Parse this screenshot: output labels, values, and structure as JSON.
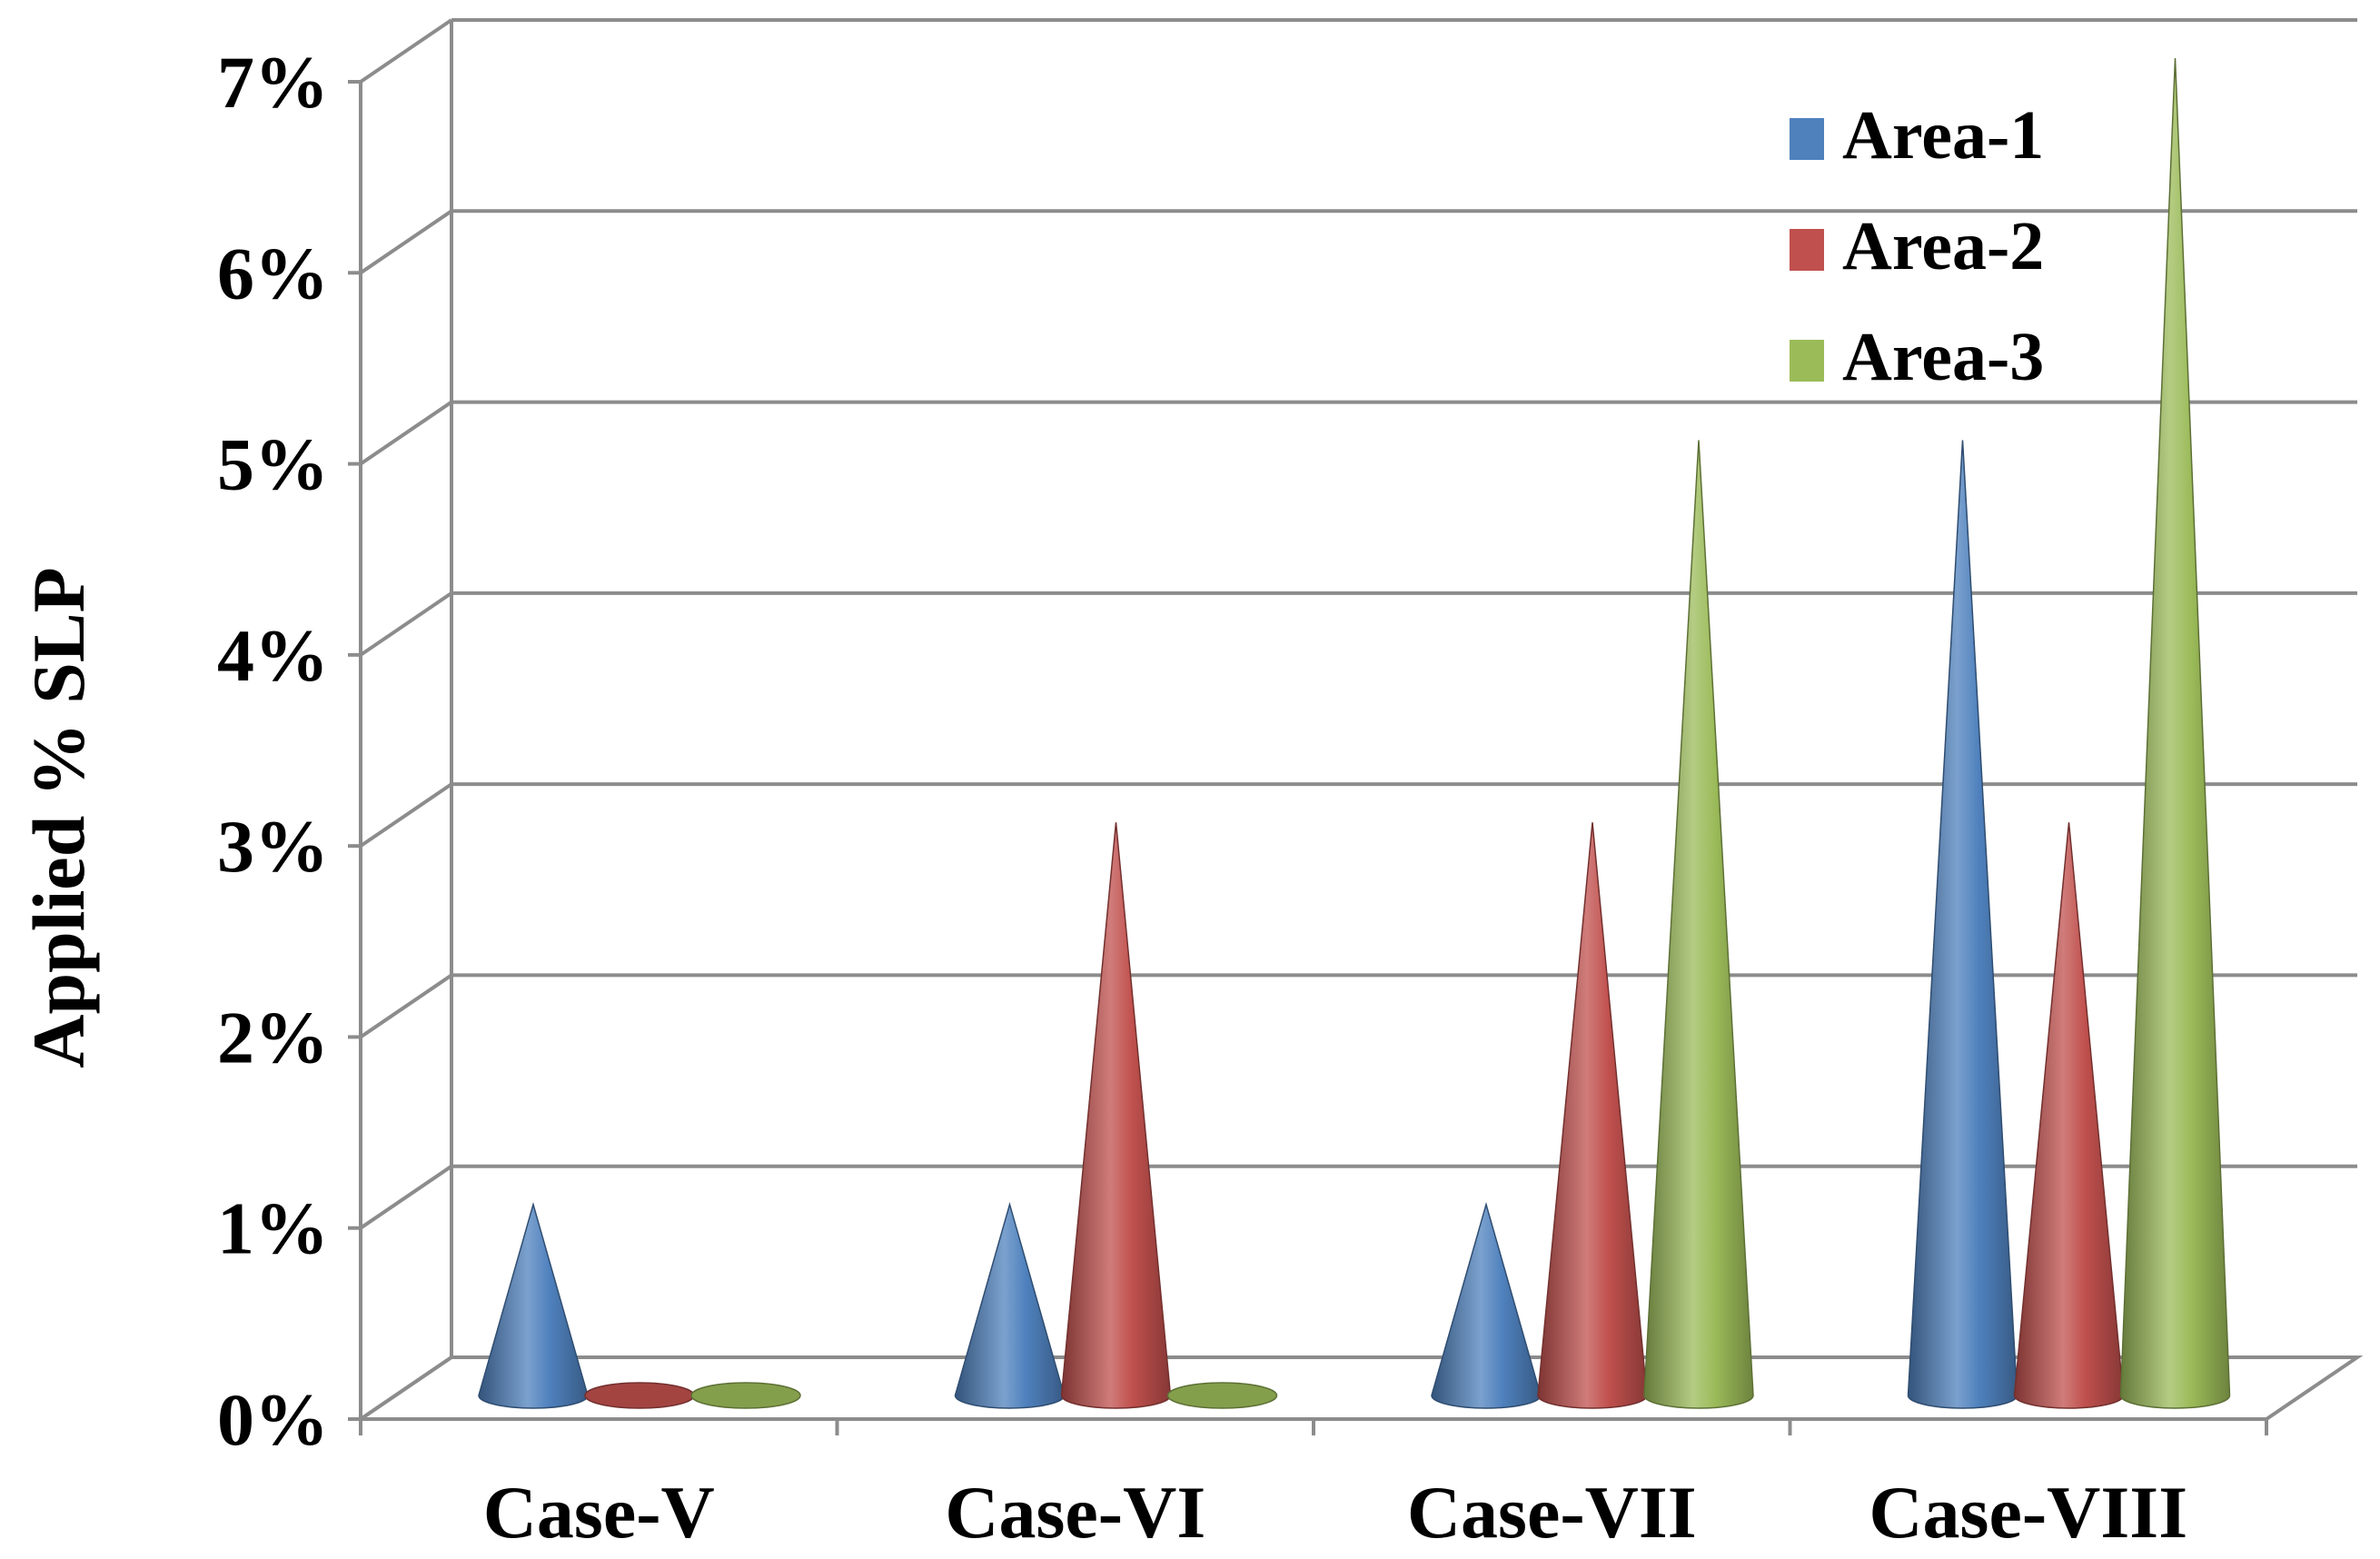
{
  "chart_data": {
    "type": "bar",
    "style": "3d-cone",
    "title": "",
    "xlabel": "",
    "ylabel": "Applied  % SLP",
    "ylim": [
      0,
      7
    ],
    "yticks": [
      "0%",
      "1%",
      "2%",
      "3%",
      "4%",
      "5%",
      "6%",
      "7%"
    ],
    "grid": true,
    "legend_position": "top-right",
    "categories": [
      "Case-V",
      "Case-VI",
      "Case-VII",
      "Case-VIII"
    ],
    "series": [
      {
        "name": "Area-1",
        "color": "#4F81BD",
        "values": [
          1,
          1,
          1,
          5
        ]
      },
      {
        "name": "Area-2",
        "color": "#C0504D",
        "values": [
          0,
          3,
          3,
          3
        ]
      },
      {
        "name": "Area-3",
        "color": "#9BBB59",
        "values": [
          0,
          0,
          5,
          7
        ]
      }
    ]
  }
}
